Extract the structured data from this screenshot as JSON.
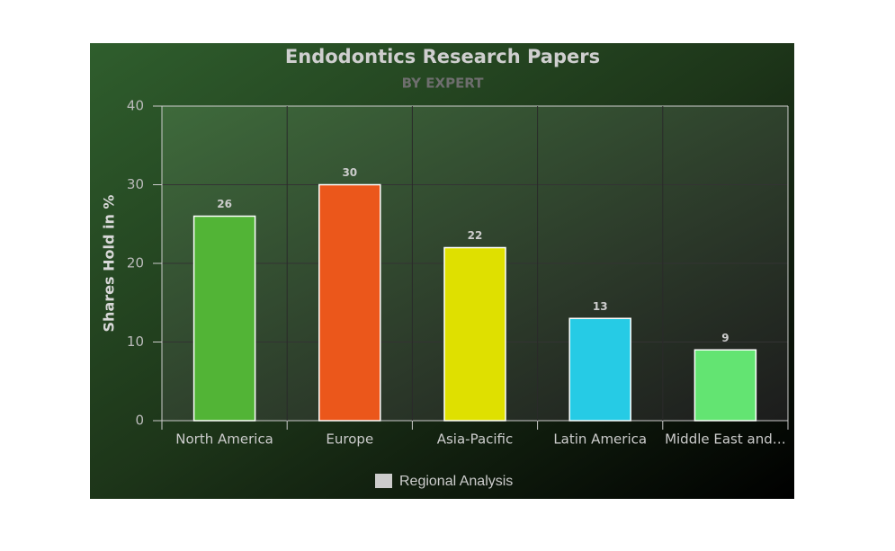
{
  "chart_data": {
    "type": "bar",
    "title": "Endodontics Research Papers",
    "subtitle": "BY EXPERT",
    "y_label": "Shares Hold in %",
    "categories": [
      "North America",
      "Europe",
      "Asia-Pacific",
      "Latin America",
      "Middle East and…"
    ],
    "series": [
      {
        "name": "Regional Analysis",
        "color": "#cccccc",
        "colors": [
          "#52b436",
          "#eb571b",
          "#dfe000",
          "#26cbe5",
          "#63e472"
        ],
        "values": [
          26,
          30,
          22,
          13,
          9
        ]
      }
    ],
    "ylim": [
      0,
      40
    ],
    "yticks": [
      0,
      10,
      20,
      30,
      40
    ],
    "grid": true
  }
}
